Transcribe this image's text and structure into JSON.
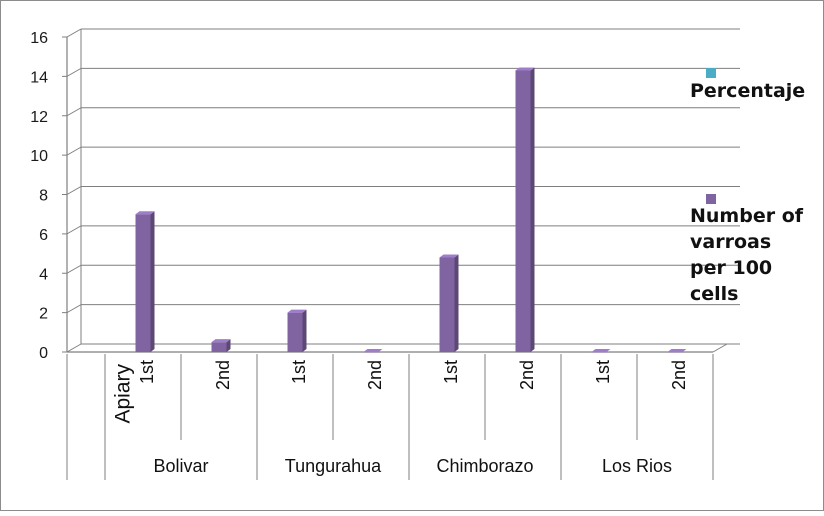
{
  "chart_data": {
    "type": "bar",
    "title": "",
    "xlabel": "",
    "ylabel": "",
    "ylim": [
      0,
      16
    ],
    "yticks": [
      "0",
      "2",
      "4",
      "6",
      "8",
      "10",
      "12",
      "14",
      "16"
    ],
    "grid": true,
    "legend_position": "right",
    "axis_row_label": "Apiary",
    "groups": [
      "Bolivar",
      "Tungurahua",
      "Chimborazo",
      "Los Rios"
    ],
    "categories": [
      "1st",
      "2nd",
      "1st",
      "2nd",
      "1st",
      "2nd",
      "1st",
      "2nd"
    ],
    "series": [
      {
        "name": "Percentaje",
        "color": "#4bacc6",
        "values": [
          0,
          0,
          0,
          0,
          0,
          0,
          0,
          0
        ]
      },
      {
        "name": "Number of varroas per 100 cells",
        "color": "#8064a2",
        "values": [
          7.0,
          0.5,
          2.0,
          0.0,
          4.8,
          14.3,
          0.0,
          0.0
        ]
      }
    ]
  }
}
